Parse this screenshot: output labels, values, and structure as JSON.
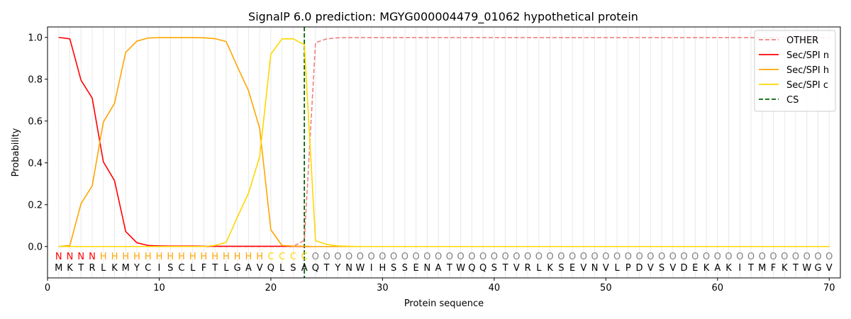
{
  "chart_data": {
    "type": "line",
    "title": "SignalP 6.0 prediction: MGYG000004479_01062 hypothetical protein",
    "xlabel": "Protein sequence",
    "ylabel": "Probability",
    "xlim": [
      0,
      71
    ],
    "ylim": [
      -0.15,
      1.05
    ],
    "xticks": [
      0,
      10,
      20,
      30,
      40,
      50,
      60,
      70
    ],
    "yticks": [
      0.0,
      0.2,
      0.4,
      0.6,
      0.8,
      1.0
    ],
    "xtick_labels": [
      "0",
      "10",
      "20",
      "30",
      "40",
      "50",
      "60",
      "70"
    ],
    "ytick_labels": [
      "0.0",
      "0.2",
      "0.4",
      "0.6",
      "0.8",
      "1.0"
    ],
    "legend_position": "top-right",
    "grid": "vertical lines at each residue",
    "sequence": [
      "M",
      "K",
      "T",
      "R",
      "L",
      "K",
      "M",
      "Y",
      "C",
      "I",
      "S",
      "C",
      "L",
      "F",
      "T",
      "L",
      "G",
      "A",
      "V",
      "Q",
      "L",
      "S",
      "A",
      "Q",
      "T",
      "Y",
      "N",
      "W",
      "I",
      "H",
      "S",
      "S",
      "E",
      "N",
      "A",
      "T",
      "W",
      "Q",
      "Q",
      "S",
      "T",
      "V",
      "R",
      "L",
      "K",
      "S",
      "E",
      "V",
      "N",
      "V",
      "L",
      "P",
      "D",
      "V",
      "S",
      "V",
      "D",
      "E",
      "K",
      "A",
      "K",
      "I",
      "T",
      "M",
      "F",
      "K",
      "T",
      "W",
      "G",
      "V"
    ],
    "region_labels": [
      "N",
      "N",
      "N",
      "N",
      "H",
      "H",
      "H",
      "H",
      "H",
      "H",
      "H",
      "H",
      "H",
      "H",
      "H",
      "H",
      "H",
      "H",
      "H",
      "C",
      "C",
      "C",
      "C",
      "O",
      "O",
      "O",
      "O",
      "O",
      "O",
      "O",
      "O",
      "O",
      "O",
      "O",
      "O",
      "O",
      "O",
      "O",
      "O",
      "O",
      "O",
      "O",
      "O",
      "O",
      "O",
      "O",
      "O",
      "O",
      "O",
      "O",
      "O",
      "O",
      "O",
      "O",
      "O",
      "O",
      "O",
      "O",
      "O",
      "O",
      "O",
      "O",
      "O",
      "O",
      "O",
      "O",
      "O",
      "O",
      "O",
      "O"
    ],
    "region_colors": {
      "N": "#ff0000",
      "H": "#ffa500",
      "C": "#ffd700",
      "O": "#808080"
    },
    "x": [
      1,
      2,
      3,
      4,
      5,
      6,
      7,
      8,
      9,
      10,
      11,
      12,
      13,
      14,
      15,
      16,
      17,
      18,
      19,
      20,
      21,
      22,
      23,
      24,
      25,
      26,
      27,
      28,
      29,
      30,
      31,
      32,
      33,
      34,
      35,
      36,
      37,
      38,
      39,
      40,
      41,
      42,
      43,
      44,
      45,
      46,
      47,
      48,
      49,
      50,
      51,
      52,
      53,
      54,
      55,
      56,
      57,
      58,
      59,
      60,
      61,
      62,
      63,
      64,
      65,
      66,
      67,
      68,
      69,
      70
    ],
    "series": [
      {
        "name": "OTHER",
        "color": "#f08080",
        "dash": "dashed",
        "values": [
          0,
          0,
          0,
          0,
          0,
          0,
          0,
          0,
          0,
          0,
          0,
          0,
          0,
          0,
          0,
          0,
          0,
          0,
          0,
          0,
          0,
          0,
          0.03,
          0.975,
          0.993,
          0.998,
          0.999,
          0.999,
          0.999,
          0.999,
          0.999,
          0.999,
          0.999,
          0.999,
          0.999,
          0.999,
          0.999,
          0.999,
          0.999,
          0.999,
          0.999,
          0.999,
          0.999,
          0.999,
          0.999,
          0.999,
          0.999,
          0.999,
          0.999,
          0.999,
          0.999,
          0.999,
          0.999,
          0.999,
          0.999,
          0.999,
          0.999,
          0.999,
          0.999,
          0.999,
          0.999,
          0.999,
          0.999,
          0.999,
          0.999,
          0.999,
          0.999,
          0.999,
          0.999,
          0.999
        ]
      },
      {
        "name": "Sec/SPI n",
        "color": "#ff0000",
        "dash": "solid",
        "values": [
          1.0,
          0.993,
          0.795,
          0.71,
          0.405,
          0.315,
          0.072,
          0.018,
          0.005,
          0.003,
          0.002,
          0.002,
          0.002,
          0.001,
          0.001,
          0.001,
          0.001,
          0.001,
          0.001,
          0.001,
          0.001,
          0.001,
          0,
          0,
          0,
          0,
          0,
          0,
          0,
          0,
          0,
          0,
          0,
          0,
          0,
          0,
          0,
          0,
          0,
          0,
          0,
          0,
          0,
          0,
          0,
          0,
          0,
          0,
          0,
          0,
          0,
          0,
          0,
          0,
          0,
          0,
          0,
          0,
          0,
          0,
          0,
          0,
          0,
          0,
          0,
          0,
          0,
          0,
          0,
          0
        ]
      },
      {
        "name": "Sec/SPI h",
        "color": "#ffa500",
        "dash": "solid",
        "values": [
          0.0,
          0.005,
          0.205,
          0.29,
          0.595,
          0.685,
          0.928,
          0.982,
          0.997,
          0.999,
          0.999,
          0.999,
          0.999,
          0.998,
          0.994,
          0.98,
          0.86,
          0.745,
          0.565,
          0.08,
          0.005,
          0.002,
          0.001,
          0,
          0,
          0,
          0,
          0,
          0,
          0,
          0,
          0,
          0,
          0,
          0,
          0,
          0,
          0,
          0,
          0,
          0,
          0,
          0,
          0,
          0,
          0,
          0,
          0,
          0,
          0,
          0,
          0,
          0,
          0,
          0,
          0,
          0,
          0,
          0,
          0,
          0,
          0,
          0,
          0,
          0,
          0,
          0,
          0,
          0,
          0
        ]
      },
      {
        "name": "Sec/SPI c",
        "color": "#ffd700",
        "dash": "solid",
        "values": [
          0,
          0,
          0,
          0,
          0,
          0,
          0,
          0,
          0,
          0,
          0,
          0,
          0,
          0,
          0.005,
          0.02,
          0.14,
          0.255,
          0.43,
          0.92,
          0.993,
          0.993,
          0.965,
          0.028,
          0.01,
          0.003,
          0.001,
          0,
          0,
          0,
          0,
          0,
          0,
          0,
          0,
          0,
          0,
          0,
          0,
          0,
          0,
          0,
          0,
          0,
          0,
          0,
          0,
          0,
          0,
          0,
          0,
          0,
          0,
          0,
          0,
          0,
          0,
          0,
          0,
          0,
          0,
          0,
          0,
          0,
          0,
          0,
          0,
          0,
          0,
          0
        ]
      }
    ],
    "cs": {
      "name": "CS",
      "x": 23,
      "color": "#006400",
      "dash": "dashed"
    }
  }
}
